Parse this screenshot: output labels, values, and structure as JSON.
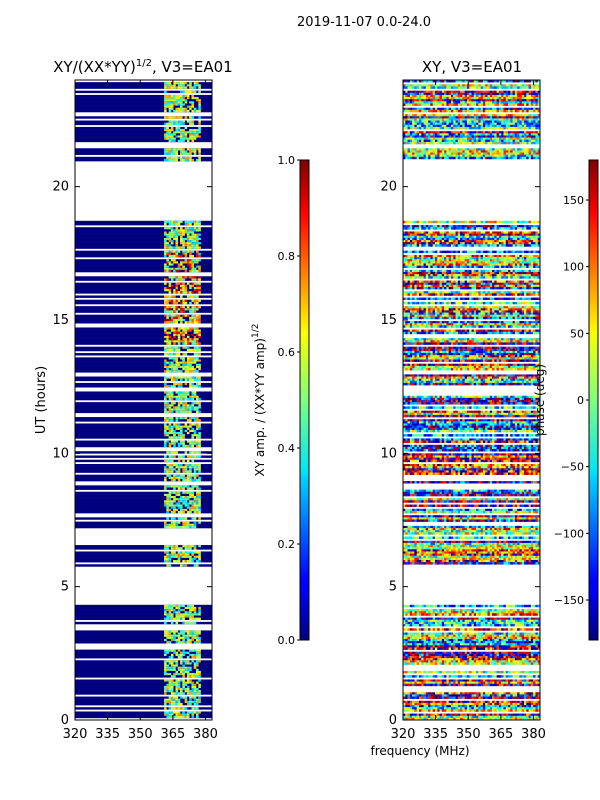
{
  "figure": {
    "suptitle": "2019-11-07 0.0-24.0",
    "xlabel_shared": "frequency (MHz)"
  },
  "chart_data": [
    {
      "type": "heatmap",
      "title_main": "XY/(XX*YY)",
      "title_sup": "1/2",
      "title_tail": ", V3=EA01",
      "ylabel": "UT (hours)",
      "xlim": [
        320,
        383
      ],
      "ylim": [
        0,
        24
      ],
      "xticks": [
        "320",
        "335",
        "350",
        "365",
        "380"
      ],
      "xtick_values": [
        320,
        335,
        350,
        365,
        380
      ],
      "yticks": [
        "0",
        "5",
        "10",
        "15",
        "20"
      ],
      "ytick_values": [
        0,
        5,
        10,
        15,
        20
      ],
      "colorbar": {
        "label_main": "XY amp. / (XX*YY amp)",
        "label_sup": "1/2",
        "range": [
          0.0,
          1.0
        ],
        "ticks": [
          "0.0",
          "0.2",
          "0.4",
          "0.6",
          "0.8",
          "1.0"
        ],
        "tick_values": [
          0.0,
          0.2,
          0.4,
          0.6,
          0.8,
          1.0
        ],
        "colormap": "jet"
      },
      "data_gaps_hours": [
        [
          18.7,
          21.0
        ],
        [
          4.3,
          5.0
        ],
        [
          5.0,
          5.8
        ],
        [
          6.6,
          7.2
        ]
      ],
      "bright_band_mhz": [
        361,
        378
      ]
    },
    {
      "type": "heatmap",
      "title": "XY, V3=EA01",
      "xlim": [
        320,
        383
      ],
      "ylim": [
        0,
        24
      ],
      "xticks": [
        "320",
        "335",
        "350",
        "365",
        "380"
      ],
      "xtick_values": [
        320,
        335,
        350,
        365,
        380
      ],
      "yticks": [
        "0",
        "5",
        "10",
        "15",
        "20"
      ],
      "ytick_values": [
        0,
        5,
        10,
        15,
        20
      ],
      "colorbar": {
        "label": "phase (deg)",
        "range": [
          -180,
          180
        ],
        "ticks": [
          "−150",
          "−100",
          "−50",
          "0",
          "50",
          "100",
          "150"
        ],
        "tick_values": [
          -150,
          -100,
          -50,
          0,
          50,
          100,
          150
        ],
        "colormap": "jet"
      },
      "data_gaps_hours": [
        [
          18.7,
          21.0
        ],
        [
          4.3,
          5.0
        ],
        [
          5.0,
          5.8
        ]
      ]
    }
  ]
}
